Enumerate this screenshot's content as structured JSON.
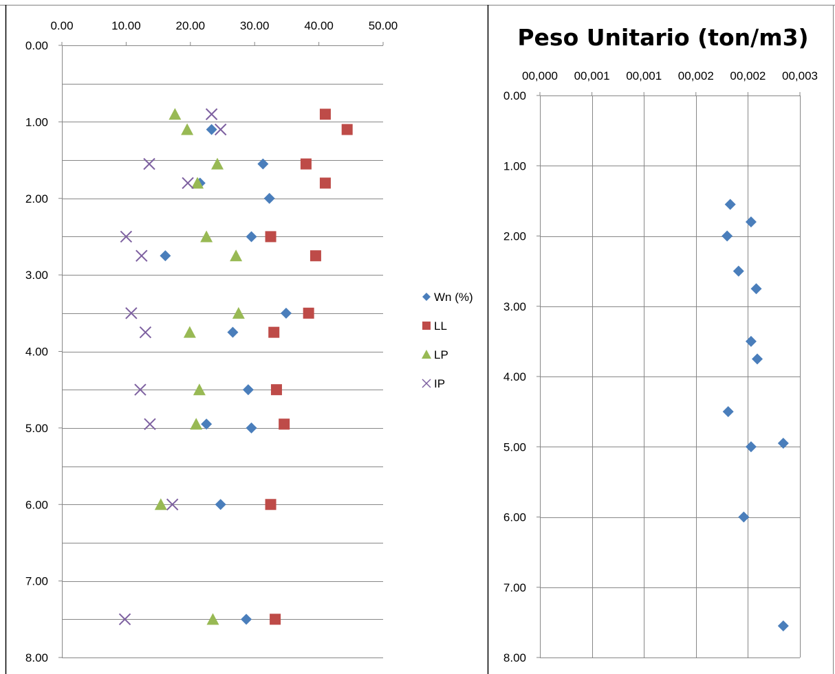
{
  "chart_data": [
    {
      "type": "scatter",
      "title": "",
      "xlabel": "",
      "ylabel": "",
      "x_axis_position": "top",
      "y_axis_reversed": true,
      "xlim": [
        0,
        50
      ],
      "ylim": [
        0,
        8
      ],
      "x_ticks": [
        "0.00",
        "10.00",
        "20.00",
        "30.00",
        "40.00",
        "50.00"
      ],
      "y_ticks": [
        "0.00",
        "1.00",
        "2.00",
        "3.00",
        "4.00",
        "5.00",
        "6.00",
        "7.00",
        "8.00"
      ],
      "grid": "horizontal",
      "legend_position": "right",
      "series": [
        {
          "name": "Wn (%)",
          "marker": "diamond",
          "color": "#4a7ebb",
          "points": [
            {
              "x": 23.3,
              "y": 1.1
            },
            {
              "x": 31.3,
              "y": 1.55
            },
            {
              "x": 21.5,
              "y": 1.8
            },
            {
              "x": 32.3,
              "y": 2.0
            },
            {
              "x": 29.5,
              "y": 2.5
            },
            {
              "x": 16.1,
              "y": 2.75
            },
            {
              "x": 34.9,
              "y": 3.5
            },
            {
              "x": 26.6,
              "y": 3.75
            },
            {
              "x": 29.0,
              "y": 4.5
            },
            {
              "x": 22.5,
              "y": 4.95
            },
            {
              "x": 29.5,
              "y": 5.0
            },
            {
              "x": 24.7,
              "y": 6.0
            },
            {
              "x": 28.7,
              "y": 7.5
            }
          ]
        },
        {
          "name": "LL",
          "marker": "square",
          "color": "#be4b48",
          "points": [
            {
              "x": 41.0,
              "y": 0.9
            },
            {
              "x": 44.4,
              "y": 1.1
            },
            {
              "x": 38.0,
              "y": 1.55
            },
            {
              "x": 41.0,
              "y": 1.8
            },
            {
              "x": 32.5,
              "y": 2.5
            },
            {
              "x": 39.5,
              "y": 2.75
            },
            {
              "x": 38.4,
              "y": 3.5
            },
            {
              "x": 33.0,
              "y": 3.75
            },
            {
              "x": 33.4,
              "y": 4.5
            },
            {
              "x": 34.6,
              "y": 4.95
            },
            {
              "x": 32.5,
              "y": 6.0
            },
            {
              "x": 33.2,
              "y": 7.5
            }
          ]
        },
        {
          "name": "LP",
          "marker": "triangle",
          "color": "#98b954",
          "points": [
            {
              "x": 17.6,
              "y": 0.9
            },
            {
              "x": 19.5,
              "y": 1.1
            },
            {
              "x": 24.2,
              "y": 1.55
            },
            {
              "x": 21.1,
              "y": 1.8
            },
            {
              "x": 22.5,
              "y": 2.5
            },
            {
              "x": 27.1,
              "y": 2.75
            },
            {
              "x": 27.5,
              "y": 3.5
            },
            {
              "x": 19.9,
              "y": 3.75
            },
            {
              "x": 21.4,
              "y": 4.5
            },
            {
              "x": 20.9,
              "y": 4.95
            },
            {
              "x": 15.4,
              "y": 6.0
            },
            {
              "x": 23.5,
              "y": 7.5
            }
          ]
        },
        {
          "name": "IP",
          "marker": "x",
          "color": "#7d60a0",
          "points": [
            {
              "x": 23.3,
              "y": 0.9
            },
            {
              "x": 24.7,
              "y": 1.1
            },
            {
              "x": 13.6,
              "y": 1.55
            },
            {
              "x": 19.6,
              "y": 1.8
            },
            {
              "x": 10.0,
              "y": 2.5
            },
            {
              "x": 12.4,
              "y": 2.75
            },
            {
              "x": 10.8,
              "y": 3.5
            },
            {
              "x": 13.0,
              "y": 3.75
            },
            {
              "x": 12.2,
              "y": 4.5
            },
            {
              "x": 13.7,
              "y": 4.95
            },
            {
              "x": 17.2,
              "y": 6.0
            },
            {
              "x": 9.8,
              "y": 7.5
            }
          ]
        }
      ]
    },
    {
      "type": "scatter",
      "title": "Peso Unitario (ton/m3)",
      "xlabel": "",
      "ylabel": "",
      "x_axis_position": "top",
      "y_axis_reversed": true,
      "xlim": [
        0,
        2.5
      ],
      "ylim": [
        0,
        8
      ],
      "x_ticks": [
        "00,000",
        "00,001",
        "00,001",
        "00,002",
        "00,002",
        "00,003"
      ],
      "y_ticks": [
        "0.00",
        "1.00",
        "2.00",
        "3.00",
        "4.00",
        "5.00",
        "6.00",
        "7.00",
        "8.00"
      ],
      "grid": "both",
      "legend_position": "none",
      "series": [
        {
          "name": "",
          "marker": "diamond",
          "color": "#4a7ebb",
          "points": [
            {
              "x": 1.83,
              "y": 1.55
            },
            {
              "x": 2.03,
              "y": 1.8
            },
            {
              "x": 1.8,
              "y": 2.0
            },
            {
              "x": 1.91,
              "y": 2.5
            },
            {
              "x": 2.08,
              "y": 2.75
            },
            {
              "x": 2.03,
              "y": 3.5
            },
            {
              "x": 2.09,
              "y": 3.75
            },
            {
              "x": 1.81,
              "y": 4.5
            },
            {
              "x": 2.34,
              "y": 4.95
            },
            {
              "x": 2.03,
              "y": 5.0
            },
            {
              "x": 1.96,
              "y": 6.0
            },
            {
              "x": 2.34,
              "y": 7.55
            }
          ]
        }
      ]
    }
  ]
}
